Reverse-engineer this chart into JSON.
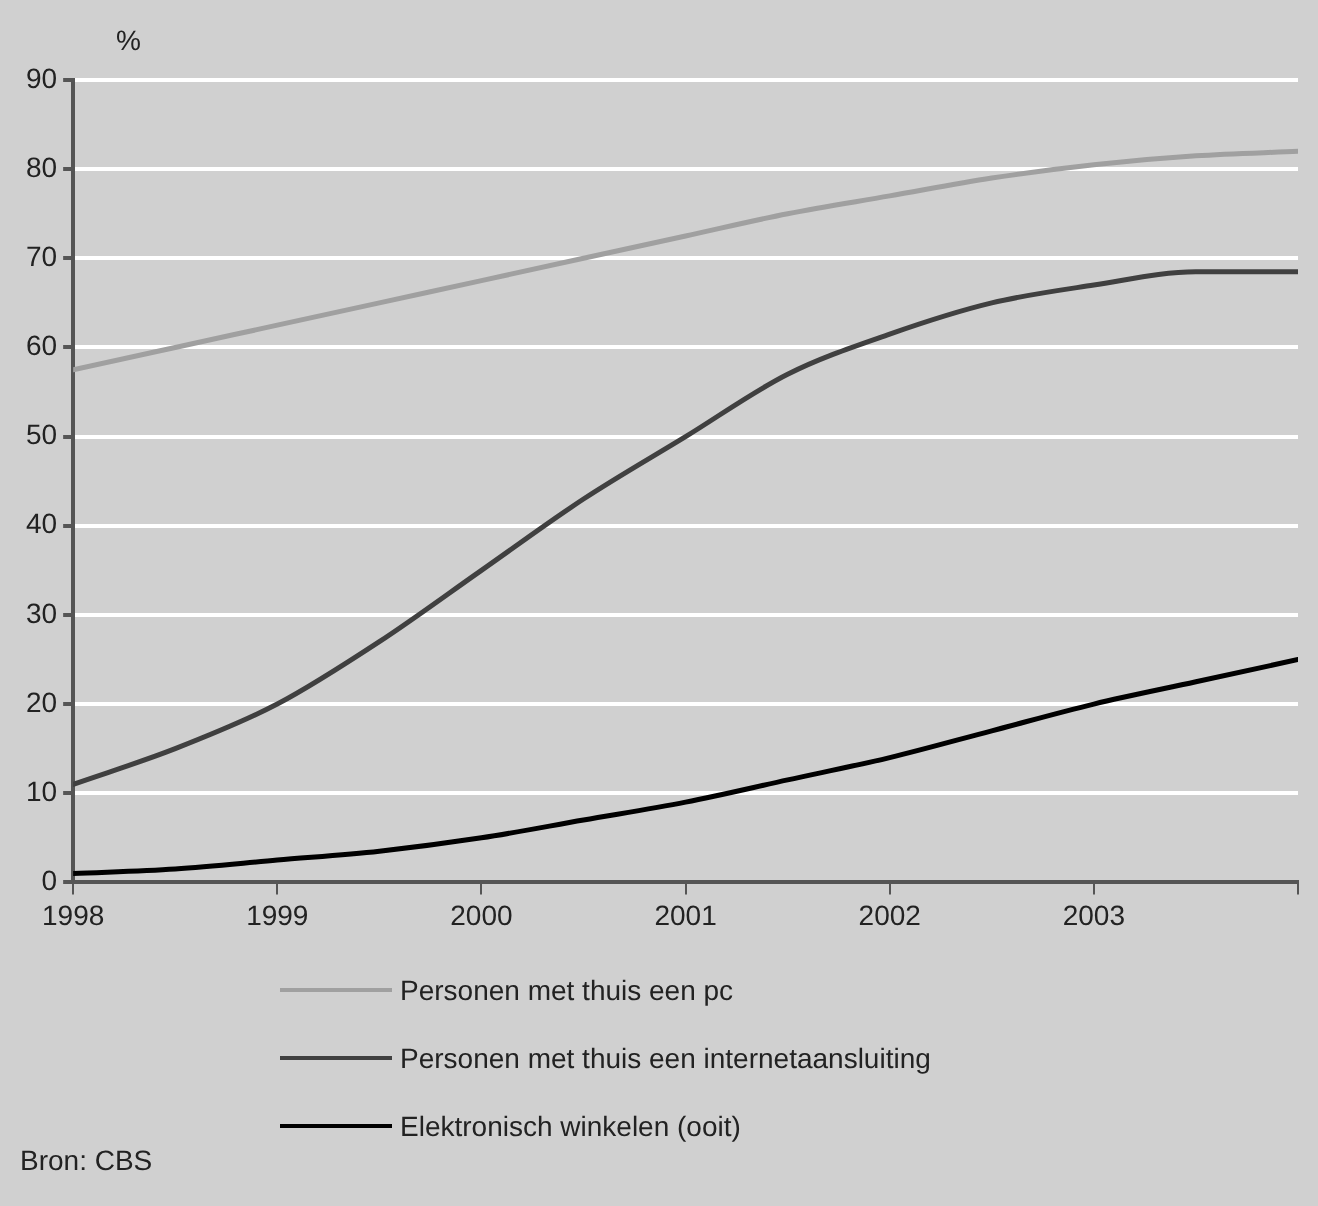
{
  "chart_data": {
    "type": "line",
    "ylabel": "%",
    "x": [
      1998,
      1998.5,
      1999,
      1999.5,
      2000,
      2000.5,
      2001,
      2001.5,
      2002,
      2002.5,
      2003,
      2003.5,
      2004
    ],
    "xlim": [
      1998,
      2004
    ],
    "xticks": [
      1998,
      1999,
      2000,
      2001,
      2002,
      2003,
      {
        "value": 2004,
        "label": null
      }
    ],
    "ylim": [
      0,
      90
    ],
    "yticks": [
      0,
      10,
      20,
      30,
      40,
      50,
      60,
      70,
      80,
      90
    ],
    "series": [
      {
        "name": "Personen met thuis een pc",
        "color": "#a0a0a0",
        "values": [
          57.5,
          60,
          62.5,
          65,
          67.5,
          70,
          72.5,
          75,
          77,
          79,
          80.5,
          81.5,
          82
        ]
      },
      {
        "name": "Personen met thuis een internetaansluiting",
        "color": "#404040",
        "values": [
          11,
          15,
          20,
          27,
          35,
          43,
          50,
          57,
          61.5,
          65,
          67,
          68.5,
          68.5
        ]
      },
      {
        "name": "Elektronisch winkelen (ooit)",
        "color": "#000000",
        "values": [
          1,
          1.5,
          2.5,
          3.5,
          5,
          7,
          9,
          11.5,
          14,
          17,
          20,
          22.5,
          25
        ]
      }
    ],
    "grid": "y",
    "legend": "bottom",
    "marker": "none",
    "line_style": "solid",
    "annotations": [
      "Bron: CBS"
    ]
  }
}
